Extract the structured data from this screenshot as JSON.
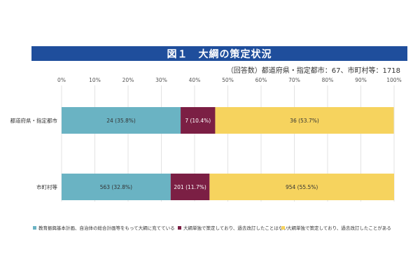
{
  "header": {
    "title": "図１　大綱の策定状況",
    "subtitle": "（回答数）都道府県・指定都市：67、市町村等：1718"
  },
  "colors": {
    "title_bg": "#1f4e9c",
    "series": [
      "#6ab3c3",
      "#7b1f44",
      "#f6d35e"
    ],
    "label_text": [
      "#333333",
      "#ffffff",
      "#333333"
    ],
    "grid": "#d0d0d0"
  },
  "chart_data": {
    "type": "bar",
    "orientation": "horizontal",
    "stacked": "percent",
    "x_ticks": [
      "0%",
      "10%",
      "20%",
      "30%",
      "40%",
      "50%",
      "60%",
      "70%",
      "80%",
      "90%",
      "100%"
    ],
    "xlim": [
      0,
      100
    ],
    "categories": [
      "都道府県・指定都市",
      "市町村等"
    ],
    "series": [
      {
        "name": "教育振興基本計画、自治体の総合計画等をもって大綱に充てている",
        "values": [
          35.8,
          32.8
        ],
        "counts": [
          24,
          563
        ],
        "labels": [
          "24 (35.8%)",
          "563 (32.8%)"
        ]
      },
      {
        "name": "大綱単独で策定しており、過去改訂したことはない",
        "values": [
          10.4,
          11.7
        ],
        "counts": [
          7,
          201
        ],
        "labels": [
          "7 (10.4%)",
          "201 (11.7%)"
        ]
      },
      {
        "name": "大綱単独で策定しており、過去改訂したことがある",
        "values": [
          53.7,
          55.5
        ],
        "counts": [
          36,
          954
        ],
        "labels": [
          "36 (53.7%)",
          "954 (55.5%)"
        ]
      }
    ],
    "legend_position": "bottom",
    "grid": true
  }
}
